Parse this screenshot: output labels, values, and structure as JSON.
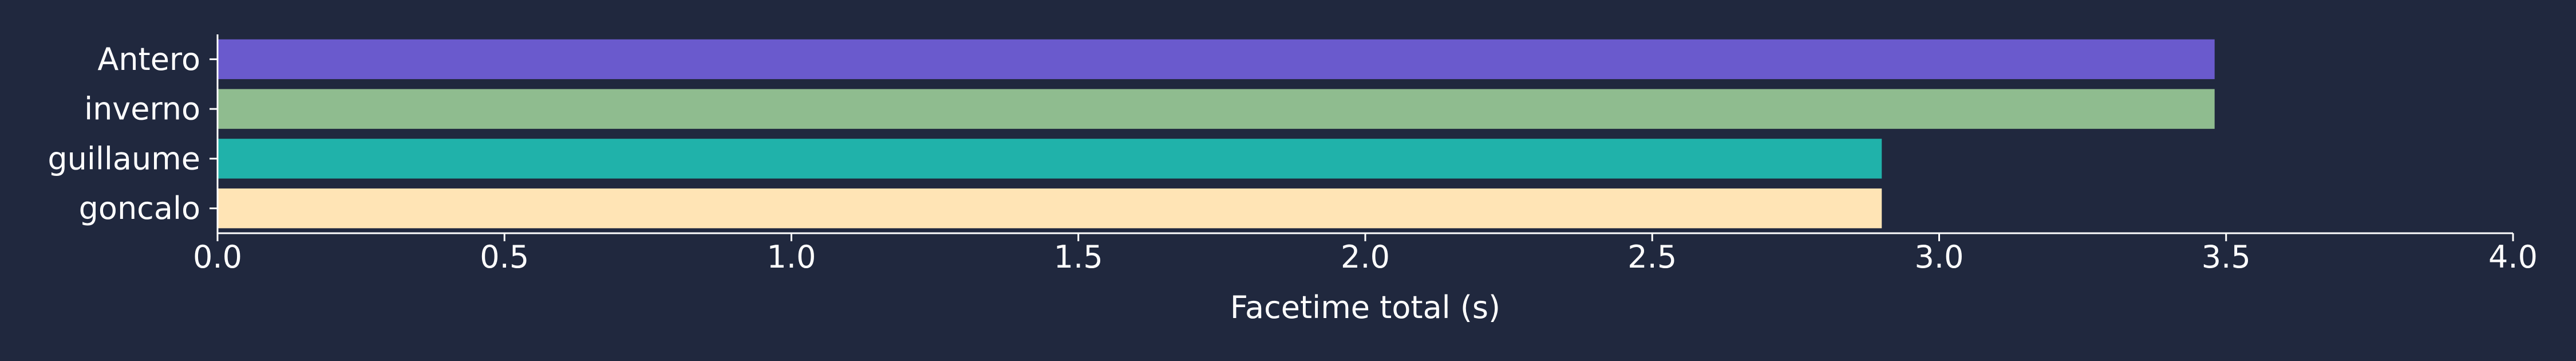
{
  "chart_data": {
    "type": "bar",
    "orientation": "horizontal",
    "categories": [
      "Antero",
      "inverno",
      "guillaume",
      "goncalo"
    ],
    "values": [
      3.48,
      3.48,
      2.9,
      2.9
    ],
    "colors": [
      "#6a5acd",
      "#8fbc8f",
      "#20b2aa",
      "#ffe4b5"
    ],
    "xlabel": "Facetime total (s)",
    "ylabel": "",
    "title": "",
    "xlim": [
      0,
      4.0
    ],
    "xticks": [
      "0.0",
      "0.5",
      "1.0",
      "1.5",
      "2.0",
      "2.5",
      "3.0",
      "3.5",
      "4.0"
    ],
    "grid": false,
    "legend": "none"
  },
  "theme": {
    "background": "#20283e",
    "axis_color": "#ffffff",
    "text_color": "#ffffff"
  }
}
